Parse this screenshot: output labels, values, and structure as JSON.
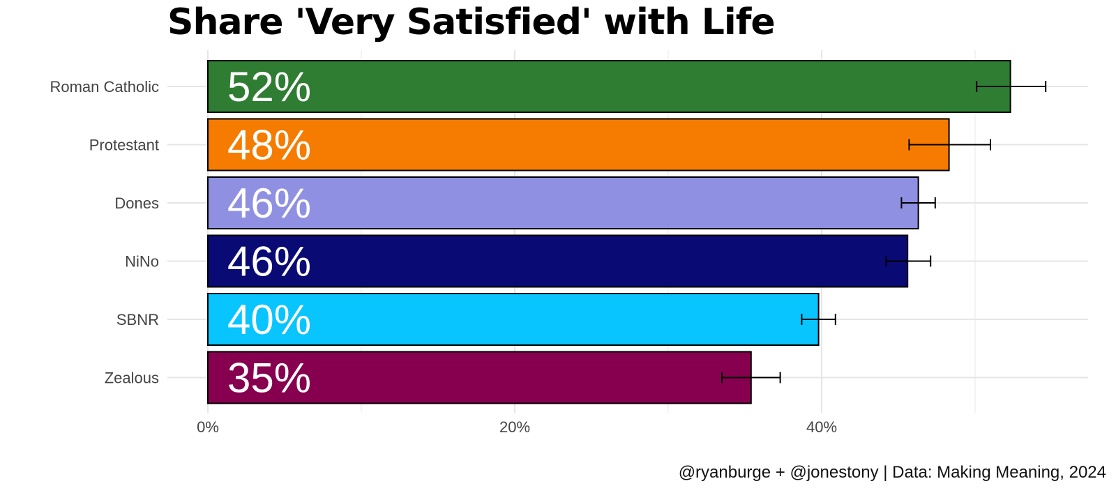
{
  "chart_data": {
    "type": "bar",
    "orientation": "horizontal",
    "title": "Share 'Very Satisfied' with Life",
    "caption": "@ryanburge + @jonestony | Data: Making Meaning, 2024",
    "xlabel": "",
    "ylabel": "",
    "xlim": [
      0,
      0.57
    ],
    "x_ticks": [
      {
        "value": 0,
        "label": "0%"
      },
      {
        "value": 0.2,
        "label": "20%"
      },
      {
        "value": 0.4,
        "label": "40%"
      }
    ],
    "grid": true,
    "legend": "none",
    "categories": [
      "Roman Catholic",
      "Protestant",
      "Dones",
      "NiNo",
      "SBNR",
      "Zealous"
    ],
    "values": [
      0.523,
      0.483,
      0.463,
      0.456,
      0.398,
      0.354
    ],
    "labels": [
      "52%",
      "48%",
      "46%",
      "46%",
      "40%",
      "35%"
    ],
    "error_low": [
      0.501,
      0.457,
      0.452,
      0.442,
      0.387,
      0.335
    ],
    "error_high": [
      0.546,
      0.51,
      0.474,
      0.471,
      0.409,
      0.373
    ],
    "colors": [
      "#2f7d32",
      "#f57c00",
      "#9090e3",
      "#0a0a75",
      "#08c4ff",
      "#87004f"
    ]
  }
}
